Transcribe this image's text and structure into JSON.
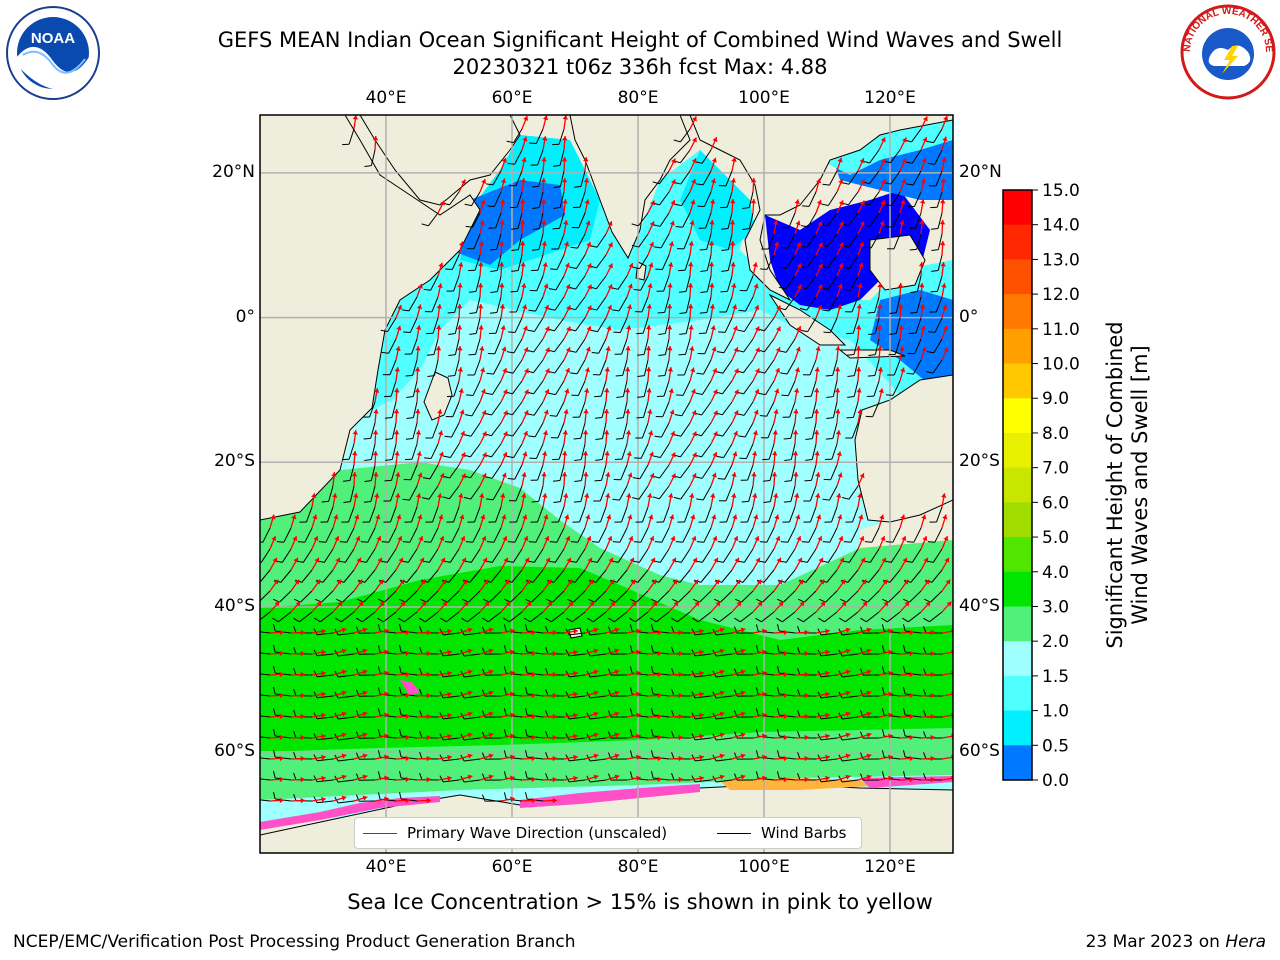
{
  "title": {
    "line1": "GEFS MEAN Indian Ocean Significant Height of Combined Wind Waves and Swell",
    "line2": "20230321 t06z 336h fcst   Max: 4.88"
  },
  "logos": {
    "left": {
      "icon": "noaa-logo",
      "text": "NOAA"
    },
    "right": {
      "icon": "nws-logo",
      "text": "NATIONAL WEATHER SERVICE"
    }
  },
  "map": {
    "lon_range": [
      20,
      130
    ],
    "lat_range": [
      -74,
      28
    ],
    "lon_ticks": [
      "40°E",
      "60°E",
      "80°E",
      "100°E",
      "120°E"
    ],
    "lon_tick_values": [
      40,
      60,
      80,
      100,
      120
    ],
    "lat_ticks_left": [
      "20°N",
      "0°",
      "20°S",
      "40°S",
      "60°S"
    ],
    "lat_ticks_right": [
      "20°N",
      "0°",
      "20°S",
      "40°S",
      "60°S"
    ],
    "lat_tick_values": [
      20,
      0,
      -20,
      -40,
      -60
    ],
    "grid": true,
    "colors": {
      "land": "#efeedc",
      "grid": "#b0b0b0",
      "wave_arrow": "#ff0000",
      "wind_barb": "#000000"
    }
  },
  "colorbar": {
    "title": "Significant Height of Combined Wind Waves and Swell [m]",
    "title_line1": "Significant Height of Combined",
    "title_line2": "Wind Waves and Swell [m]",
    "labels": [
      "15.0",
      "14.0",
      "13.0",
      "12.0",
      "11.0",
      "10.0",
      "9.0",
      "8.0",
      "7.0",
      "6.0",
      "5.0",
      "4.0",
      "3.0",
      "2.0",
      "1.5",
      "1.0",
      "0.5",
      "0.0"
    ],
    "colors": [
      "#ff0000",
      "#ff2800",
      "#ff5000",
      "#ff7800",
      "#ffa000",
      "#ffc800",
      "#ffff00",
      "#e6f000",
      "#c8e600",
      "#a0dc00",
      "#50e600",
      "#00e600",
      "#50f07a",
      "#a0ffff",
      "#50ffff",
      "#00f0ff",
      "#0078ff",
      "#0000ff"
    ]
  },
  "legend": {
    "wave_label": "Primary Wave Direction (unscaled)",
    "wind_label": "Wind Barbs"
  },
  "caption": "Sea Ice Concentration > 15% is shown in pink to yellow",
  "footer": {
    "left": "NCEP/EMC/Verification Post Processing Product Generation Branch",
    "right_prefix": "23 Mar 2023 on ",
    "right_italic": "Hera"
  }
}
